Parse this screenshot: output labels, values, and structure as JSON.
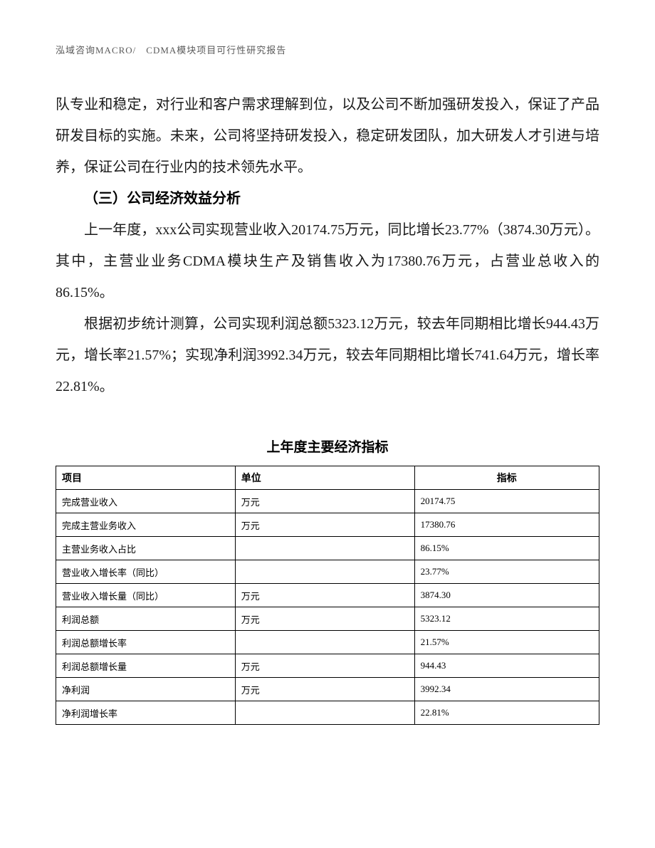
{
  "header": {
    "text": "泓域咨询MACRO/　CDMA模块项目可行性研究报告"
  },
  "paragraphs": {
    "p1": "队专业和稳定，对行业和客户需求理解到位，以及公司不断加强研发投入，保证了产品研发目标的实施。未来，公司将坚持研发投入，稳定研发团队，加大研发人才引进与培养，保证公司在行业内的技术领先水平。",
    "heading": "（三）公司经济效益分析",
    "p2": "上一年度，xxx公司实现营业收入20174.75万元，同比增长23.77%（3874.30万元）。其中，主营业业务CDMA模块生产及销售收入为17380.76万元，占营业总收入的86.15%。",
    "p3": "根据初步统计测算，公司实现利润总额5323.12万元，较去年同期相比增长944.43万元，增长率21.57%；实现净利润3992.34万元，较去年同期相比增长741.64万元，增长率22.81%。"
  },
  "table": {
    "title": "上年度主要经济指标",
    "columns": [
      "项目",
      "单位",
      "指标"
    ],
    "rows": [
      [
        "完成营业收入",
        "万元",
        "20174.75"
      ],
      [
        "完成主营业务收入",
        "万元",
        "17380.76"
      ],
      [
        "主营业务收入占比",
        "",
        "86.15%"
      ],
      [
        "营业收入增长率（同比）",
        "",
        "23.77%"
      ],
      [
        "营业收入增长量（同比）",
        "万元",
        "3874.30"
      ],
      [
        "利润总额",
        "万元",
        "5323.12"
      ],
      [
        "利润总额增长率",
        "",
        "21.57%"
      ],
      [
        "利润总额增长量",
        "万元",
        "944.43"
      ],
      [
        "净利润",
        "万元",
        "3992.34"
      ],
      [
        "净利润增长率",
        "",
        "22.81%"
      ]
    ]
  }
}
